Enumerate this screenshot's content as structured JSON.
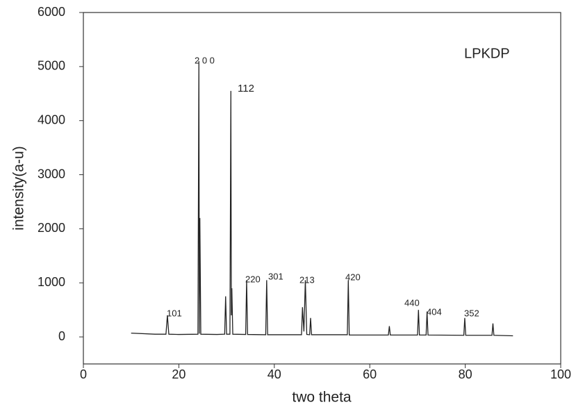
{
  "chart_data": {
    "type": "line",
    "x_label": "two theta",
    "y_label": "intensity(a-u)",
    "x": [
      10,
      15,
      17.3,
      17.6,
      17.9,
      20,
      24.0,
      24.2,
      24.3,
      24.4,
      24.6,
      28,
      29.6,
      29.8,
      30.0,
      30.7,
      30.9,
      31.0,
      31.1,
      31.3,
      34.0,
      34.2,
      34.4,
      38.2,
      38.4,
      38.6,
      45.7,
      45.9,
      46.2,
      46.5,
      46.8,
      47.4,
      47.6,
      47.8,
      55.3,
      55.5,
      55.7,
      63.9,
      64.1,
      64.3,
      70.0,
      70.2,
      70.4,
      71.8,
      72.0,
      72.2,
      79.7,
      79.9,
      80.1,
      85.6,
      85.8,
      86.0,
      90
    ],
    "values": [
      70,
      50,
      50,
      400,
      50,
      45,
      50,
      5100,
      60,
      2200,
      50,
      45,
      50,
      750,
      50,
      50,
      4550,
      400,
      900,
      50,
      45,
      1050,
      45,
      40,
      1050,
      40,
      40,
      550,
      100,
      1050,
      45,
      40,
      350,
      40,
      40,
      1050,
      35,
      35,
      200,
      35,
      35,
      500,
      35,
      35,
      470,
      35,
      30,
      350,
      30,
      30,
      250,
      30,
      20
    ],
    "color": "#222222",
    "xlim": [
      0,
      100
    ],
    "xticks": [
      0,
      20,
      40,
      60,
      80,
      100
    ],
    "ylim": [
      -500,
      6000
    ],
    "yticks": [
      0,
      1000,
      2000,
      3000,
      4000,
      5000,
      6000
    ],
    "annotations": [
      "LPKDP",
      "101",
      "2 0 0",
      "112",
      "220",
      "301",
      "213",
      "420",
      "440",
      "404",
      "352"
    ]
  }
}
